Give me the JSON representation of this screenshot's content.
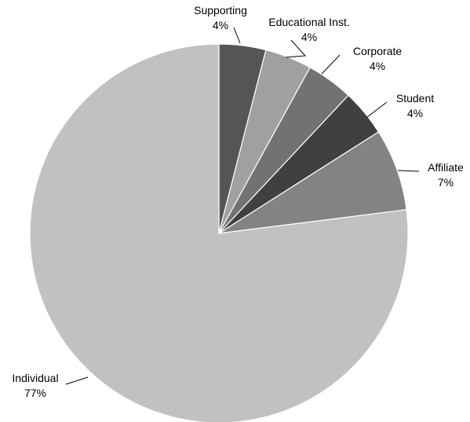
{
  "chart_data": {
    "type": "pie",
    "title": "",
    "start": "12 o'clock, clockwise",
    "slices": [
      {
        "name": "Supporting",
        "value": 4,
        "value_label": "4%",
        "color": "#555555"
      },
      {
        "name": "Educational Inst.",
        "value": 4,
        "value_label": "4%",
        "color": "#a0a0a0"
      },
      {
        "name": "Corporate",
        "value": 4,
        "value_label": "4%",
        "color": "#727272"
      },
      {
        "name": "Student",
        "value": 4,
        "value_label": "4%",
        "color": "#404040"
      },
      {
        "name": "Affiliate",
        "value": 7,
        "value_label": "7%",
        "color": "#838383"
      },
      {
        "name": "Individual",
        "value": 77,
        "value_label": "77%",
        "color": "#c1c1c1"
      }
    ]
  }
}
